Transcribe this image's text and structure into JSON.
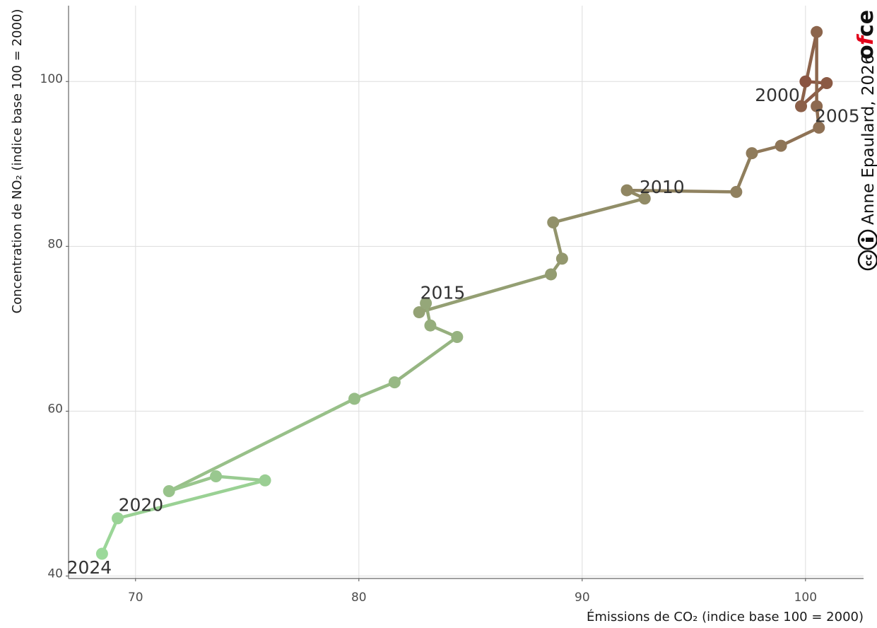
{
  "chart_data": {
    "type": "scatter",
    "connected": true,
    "title": "",
    "xlabel": "Émissions de CO₂ (indice base 100 = 2000)",
    "ylabel": "Concentration de NO₂ (indice base 100 = 2000)",
    "xlim": [
      67,
      102.6
    ],
    "ylim": [
      39.7,
      109.2
    ],
    "xticks": [
      70,
      80,
      90,
      100
    ],
    "yticks": [
      40,
      60,
      80,
      100
    ],
    "grid": true,
    "color_start": "#8a5441",
    "color_end": "#9bd99a",
    "points": [
      {
        "year": 2000,
        "x": 100.0,
        "y": 100.0
      },
      {
        "year": 2001,
        "x": 100.95,
        "y": 99.8
      },
      {
        "year": 2002,
        "x": 99.8,
        "y": 97.0
      },
      {
        "year": 2003,
        "x": 100.5,
        "y": 106.0
      },
      {
        "year": 2004,
        "x": 100.5,
        "y": 97.0
      },
      {
        "year": 2005,
        "x": 100.6,
        "y": 94.4
      },
      {
        "year": 2006,
        "x": 98.9,
        "y": 92.2
      },
      {
        "year": 2007,
        "x": 97.6,
        "y": 91.3
      },
      {
        "year": 2008,
        "x": 96.9,
        "y": 86.6
      },
      {
        "year": 2009,
        "x": 92.0,
        "y": 86.8
      },
      {
        "year": 2010,
        "x": 92.8,
        "y": 85.8
      },
      {
        "year": 2011,
        "x": 88.7,
        "y": 82.9
      },
      {
        "year": 2012,
        "x": 89.1,
        "y": 78.5
      },
      {
        "year": 2013,
        "x": 88.6,
        "y": 76.6
      },
      {
        "year": 2014,
        "x": 82.7,
        "y": 72.0
      },
      {
        "year": 2015,
        "x": 83.0,
        "y": 73.1
      },
      {
        "year": 2016,
        "x": 83.2,
        "y": 70.4
      },
      {
        "year": 2017,
        "x": 84.4,
        "y": 69.0
      },
      {
        "year": 2018,
        "x": 81.6,
        "y": 63.5
      },
      {
        "year": 2019,
        "x": 79.8,
        "y": 61.5
      },
      {
        "year": 2020,
        "x": 71.5,
        "y": 50.3
      },
      {
        "year": 2021,
        "x": 73.6,
        "y": 52.1
      },
      {
        "year": 2022,
        "x": 75.8,
        "y": 51.6
      },
      {
        "year": 2023,
        "x": 69.2,
        "y": 47.0
      },
      {
        "year": 2024,
        "x": 68.5,
        "y": 42.7
      }
    ],
    "annotations": [
      {
        "text": "2000",
        "year": 2000,
        "anchor": "end",
        "side": "below"
      },
      {
        "text": "2005",
        "year": 2005,
        "anchor": "middle",
        "side": "above"
      },
      {
        "text": "2010",
        "year": 2009,
        "anchor": "start",
        "side": "right"
      },
      {
        "text": "2015",
        "year": 2015,
        "anchor": "start",
        "side": "above"
      },
      {
        "text": "2020",
        "year": 2020,
        "anchor": "end",
        "side": "below"
      },
      {
        "text": "2024",
        "year": 2024,
        "anchor": "middle",
        "side": "below"
      }
    ]
  },
  "credit": {
    "text": "Anne Epaulard, 2026",
    "license_icon": "creative-commons-by-icon",
    "logo_text": "ofce"
  }
}
